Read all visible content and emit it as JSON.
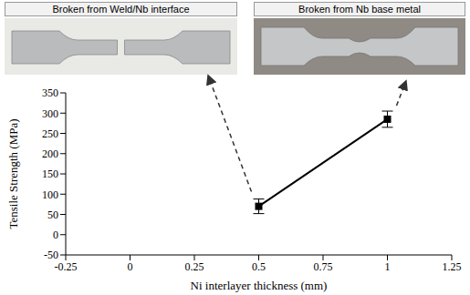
{
  "chart_data": {
    "type": "line",
    "x": [
      0.5,
      1
    ],
    "values": [
      70,
      285
    ],
    "errors": [
      18,
      20
    ],
    "color": "#000000",
    "marker": "square",
    "xlabel": "Ni interlayer thickness (mm)",
    "ylabel": "Tensile Strength (MPa)",
    "xlim": [
      -0.25,
      1.25
    ],
    "xticks": [
      -0.25,
      0,
      0.25,
      0.5,
      0.75,
      1,
      1.25
    ],
    "ylim": [
      -50,
      350
    ],
    "yticks": [
      -50,
      0,
      50,
      100,
      150,
      200,
      250,
      300,
      350
    ],
    "grid": false,
    "annotations": [
      {
        "text": "Broken from Weld/Nb interface",
        "x": 0.5,
        "y": 70
      },
      {
        "text": "Broken from Nb base metal",
        "x": 1,
        "y": 285
      }
    ]
  }
}
